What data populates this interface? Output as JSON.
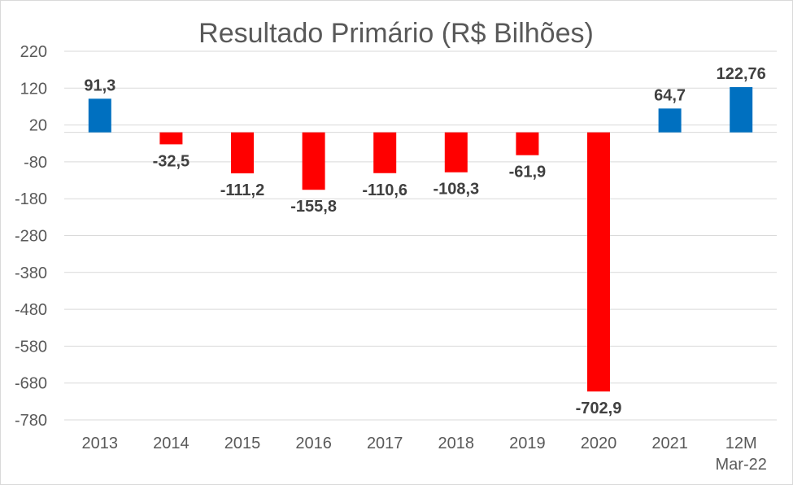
{
  "chart_data": {
    "type": "bar",
    "title": "Resultado Primário (R$ Bilhões)",
    "xlabel": "",
    "ylabel": "",
    "categories": [
      "2013",
      "2014",
      "2015",
      "2016",
      "2017",
      "2018",
      "2019",
      "2020",
      "2021",
      "12M Mar-22"
    ],
    "category_lines": [
      [
        "2013"
      ],
      [
        "2014"
      ],
      [
        "2015"
      ],
      [
        "2016"
      ],
      [
        "2017"
      ],
      [
        "2018"
      ],
      [
        "2019"
      ],
      [
        "2020"
      ],
      [
        "2021"
      ],
      [
        "12M",
        "Mar-22"
      ]
    ],
    "values": [
      91.3,
      -32.5,
      -111.2,
      -155.8,
      -110.6,
      -108.3,
      -61.9,
      -702.9,
      64.7,
      122.76
    ],
    "data_labels": [
      "91,3",
      "-32,5",
      "-111,2",
      "-155,8",
      "-110,6",
      "-108,3",
      "-61,9",
      "-702,9",
      "64,7",
      "122,76"
    ],
    "ylim": [
      -780,
      220
    ],
    "yticks": [
      220,
      120,
      20,
      -80,
      -180,
      -280,
      -380,
      -480,
      -580,
      -680,
      -780
    ],
    "grid": true,
    "legend": "none",
    "colors": {
      "positive": "#0070C0",
      "negative": "#FF0000",
      "grid": "#d9d9d9",
      "text": "#595959",
      "label": "#404040"
    }
  }
}
